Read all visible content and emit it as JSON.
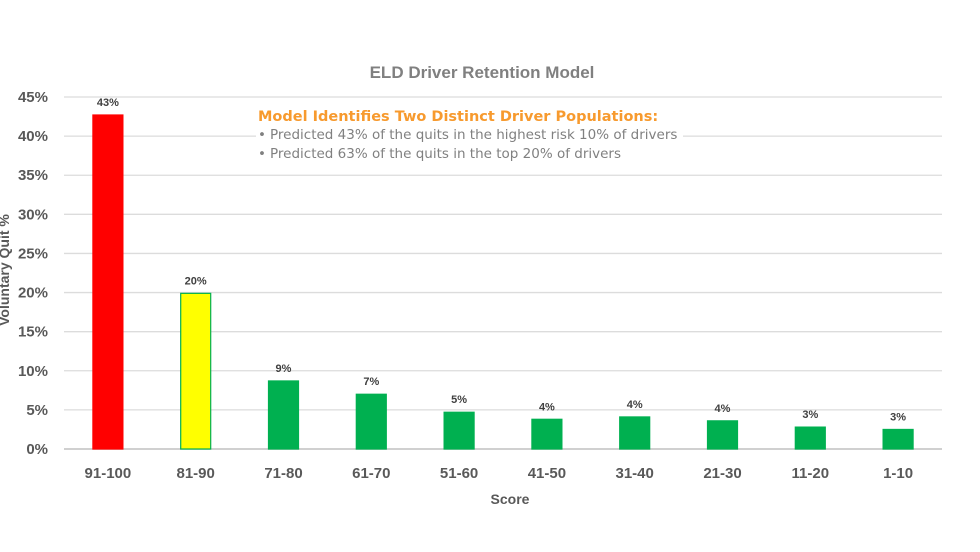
{
  "chart_data": {
    "type": "bar",
    "title": "ELD Driver Retention Model",
    "xlabel": "Score",
    "ylabel": "Voluntary Quit %",
    "ylim": [
      0,
      45
    ],
    "yticks": [
      0,
      5,
      10,
      15,
      20,
      25,
      30,
      35,
      40,
      45
    ],
    "ytick_labels": [
      "0%",
      "5%",
      "10%",
      "15%",
      "20%",
      "25%",
      "30%",
      "35%",
      "40%",
      "45%"
    ],
    "grid": true,
    "categories": [
      "91-100",
      "81-90",
      "71-80",
      "61-70",
      "51-60",
      "41-50",
      "31-40",
      "21-30",
      "11-20",
      "1-10"
    ],
    "values": [
      42.7,
      19.9,
      8.7,
      7.0,
      4.7,
      3.8,
      4.1,
      3.6,
      2.8,
      2.5
    ],
    "data_labels": [
      "43%",
      "20%",
      "9%",
      "7%",
      "5%",
      "4%",
      "4%",
      "4%",
      "3%",
      "3%"
    ],
    "bar_colors": [
      "#FF0000",
      "#FFFF00",
      "#00B050",
      "#00B050",
      "#00B050",
      "#00B050",
      "#00B050",
      "#00B050",
      "#00B050",
      "#00B050"
    ],
    "bar_edge_colors": [
      "#FF0000",
      "#00B050",
      "#00B050",
      "#00B050",
      "#00B050",
      "#00B050",
      "#00B050",
      "#00B050",
      "#00B050",
      "#00B050"
    ],
    "annotation": {
      "heading": "Model Identifies Two Distinct Driver Populations:",
      "bullets": [
        "Predicted 43% of the quits in the highest risk 10% of drivers",
        "Predicted 63% of the quits in the top 20% of drivers"
      ],
      "bullet_glyph": "•",
      "heading_color": "#F79A2E"
    }
  }
}
